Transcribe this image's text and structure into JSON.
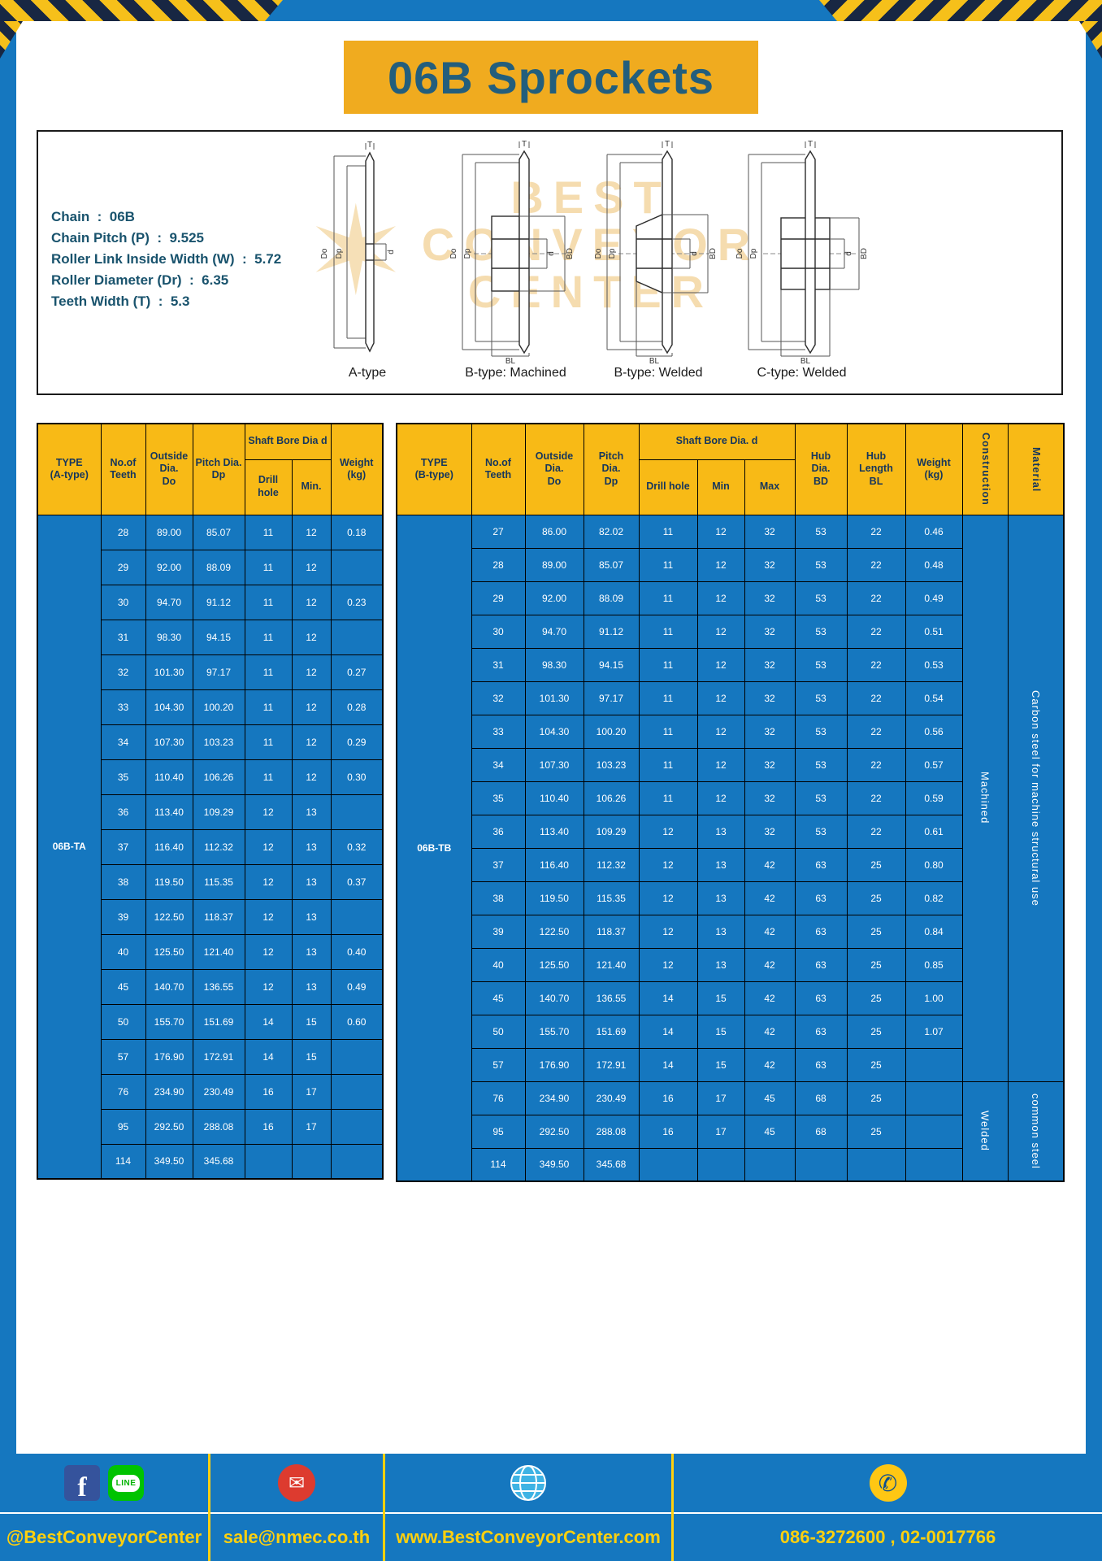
{
  "title": "06B Sprockets",
  "colors": {
    "frame_blue": "#1577bf",
    "banner_yellow": "#f0ab1f",
    "table_header_yellow": "#f8ba16",
    "footer_text_yellow": "#ffd00e",
    "title_text": "#235e7c"
  },
  "specs": {
    "lines": [
      "Chain  :  06B",
      "Chain Pitch (P)  :  9.525",
      "Roller Link Inside Width (W)  :  5.72",
      "Roller Diameter (Dr)  :  6.35",
      "Teeth Width (T)  :  5.3"
    ]
  },
  "drawing": {
    "watermark": [
      "BEST",
      "CONVEYOR",
      "CENTER"
    ],
    "watermark_star": "✶",
    "captions": [
      "A-type",
      "B-type: Machined",
      "B-type: Welded",
      "C-type: Welded"
    ],
    "labels": {
      "t": "T",
      "do": "Do",
      "dp": "Dp",
      "d": "d",
      "bd": "BD",
      "bl": "BL"
    }
  },
  "table_a": {
    "type_value": "06B-TA",
    "headers": {
      "type": "TYPE\n(A-type)",
      "teeth": "No.of\nTeeth",
      "outside": "Outside\nDia.\nDo",
      "pitch": "Pitch Dia.\nDp",
      "shaft_bore": "Shaft Bore Dia d",
      "drill": "Drill hole",
      "min": "Min.",
      "weight": "Weight\n(kg)"
    },
    "rows": [
      [
        "28",
        "89.00",
        "85.07",
        "11",
        "12",
        "0.18"
      ],
      [
        "29",
        "92.00",
        "88.09",
        "11",
        "12",
        ""
      ],
      [
        "30",
        "94.70",
        "91.12",
        "11",
        "12",
        "0.23"
      ],
      [
        "31",
        "98.30",
        "94.15",
        "11",
        "12",
        ""
      ],
      [
        "32",
        "101.30",
        "97.17",
        "11",
        "12",
        "0.27"
      ],
      [
        "33",
        "104.30",
        "100.20",
        "11",
        "12",
        "0.28"
      ],
      [
        "34",
        "107.30",
        "103.23",
        "11",
        "12",
        "0.29"
      ],
      [
        "35",
        "110.40",
        "106.26",
        "11",
        "12",
        "0.30"
      ],
      [
        "36",
        "113.40",
        "109.29",
        "12",
        "13",
        ""
      ],
      [
        "37",
        "116.40",
        "112.32",
        "12",
        "13",
        "0.32"
      ],
      [
        "38",
        "119.50",
        "115.35",
        "12",
        "13",
        "0.37"
      ],
      [
        "39",
        "122.50",
        "118.37",
        "12",
        "13",
        ""
      ],
      [
        "40",
        "125.50",
        "121.40",
        "12",
        "13",
        "0.40"
      ],
      [
        "45",
        "140.70",
        "136.55",
        "12",
        "13",
        "0.49"
      ],
      [
        "50",
        "155.70",
        "151.69",
        "14",
        "15",
        "0.60"
      ],
      [
        "57",
        "176.90",
        "172.91",
        "14",
        "15",
        ""
      ],
      [
        "76",
        "234.90",
        "230.49",
        "16",
        "17",
        ""
      ],
      [
        "95",
        "292.50",
        "288.08",
        "16",
        "17",
        ""
      ],
      [
        "114",
        "349.50",
        "345.68",
        "",
        "",
        ""
      ]
    ]
  },
  "table_b": {
    "type_value": "06B-TB",
    "headers": {
      "type": "TYPE\n(B-type)",
      "teeth": "No.of\nTeeth",
      "outside": "Outside\nDia.\nDo",
      "pitch": "Pitch\nDia.\nDp",
      "shaft_bore": "Shaft Bore Dia. d",
      "drill": "Drill hole",
      "min": "Min",
      "max": "Max",
      "hub_dia": "Hub\nDia.\nBD",
      "hub_len": "Hub\nLength\nBL",
      "weight": "Weight\n(kg)",
      "construction": "Construction",
      "material": "Material"
    },
    "rows": [
      [
        "27",
        "86.00",
        "82.02",
        "11",
        "12",
        "32",
        "53",
        "22",
        "0.46"
      ],
      [
        "28",
        "89.00",
        "85.07",
        "11",
        "12",
        "32",
        "53",
        "22",
        "0.48"
      ],
      [
        "29",
        "92.00",
        "88.09",
        "11",
        "12",
        "32",
        "53",
        "22",
        "0.49"
      ],
      [
        "30",
        "94.70",
        "91.12",
        "11",
        "12",
        "32",
        "53",
        "22",
        "0.51"
      ],
      [
        "31",
        "98.30",
        "94.15",
        "11",
        "12",
        "32",
        "53",
        "22",
        "0.53"
      ],
      [
        "32",
        "101.30",
        "97.17",
        "11",
        "12",
        "32",
        "53",
        "22",
        "0.54"
      ],
      [
        "33",
        "104.30",
        "100.20",
        "11",
        "12",
        "32",
        "53",
        "22",
        "0.56"
      ],
      [
        "34",
        "107.30",
        "103.23",
        "11",
        "12",
        "32",
        "53",
        "22",
        "0.57"
      ],
      [
        "35",
        "110.40",
        "106.26",
        "11",
        "12",
        "32",
        "53",
        "22",
        "0.59"
      ],
      [
        "36",
        "113.40",
        "109.29",
        "12",
        "13",
        "32",
        "53",
        "22",
        "0.61"
      ],
      [
        "37",
        "116.40",
        "112.32",
        "12",
        "13",
        "42",
        "63",
        "25",
        "0.80"
      ],
      [
        "38",
        "119.50",
        "115.35",
        "12",
        "13",
        "42",
        "63",
        "25",
        "0.82"
      ],
      [
        "39",
        "122.50",
        "118.37",
        "12",
        "13",
        "42",
        "63",
        "25",
        "0.84"
      ],
      [
        "40",
        "125.50",
        "121.40",
        "12",
        "13",
        "42",
        "63",
        "25",
        "0.85"
      ],
      [
        "45",
        "140.70",
        "136.55",
        "14",
        "15",
        "42",
        "63",
        "25",
        "1.00"
      ],
      [
        "50",
        "155.70",
        "151.69",
        "14",
        "15",
        "42",
        "63",
        "25",
        "1.07"
      ],
      [
        "57",
        "176.90",
        "172.91",
        "14",
        "15",
        "42",
        "63",
        "25",
        ""
      ],
      [
        "76",
        "234.90",
        "230.49",
        "16",
        "17",
        "45",
        "68",
        "25",
        ""
      ],
      [
        "95",
        "292.50",
        "288.08",
        "16",
        "17",
        "45",
        "68",
        "25",
        ""
      ],
      [
        "114",
        "349.50",
        "345.68",
        "",
        "",
        "",
        "",
        "",
        ""
      ]
    ],
    "construction_groups": [
      {
        "label": "Machined",
        "span": 17
      },
      {
        "label": "Welded",
        "span": 3
      }
    ],
    "material_groups": [
      {
        "label": "Carbon steel for machine structural use",
        "span": 17
      },
      {
        "label": "common steel",
        "span": 3
      }
    ]
  },
  "footer": {
    "icons": {
      "facebook": "f",
      "line": "LINE",
      "email": "✉",
      "phone": "✆"
    },
    "sections": [
      {
        "label": "@BestConveyorCenter"
      },
      {
        "label": "sale@nmec.co.th"
      },
      {
        "label": "www.BestConveyorCenter.com"
      },
      {
        "label": "086-3272600 , 02-0017766"
      }
    ]
  }
}
